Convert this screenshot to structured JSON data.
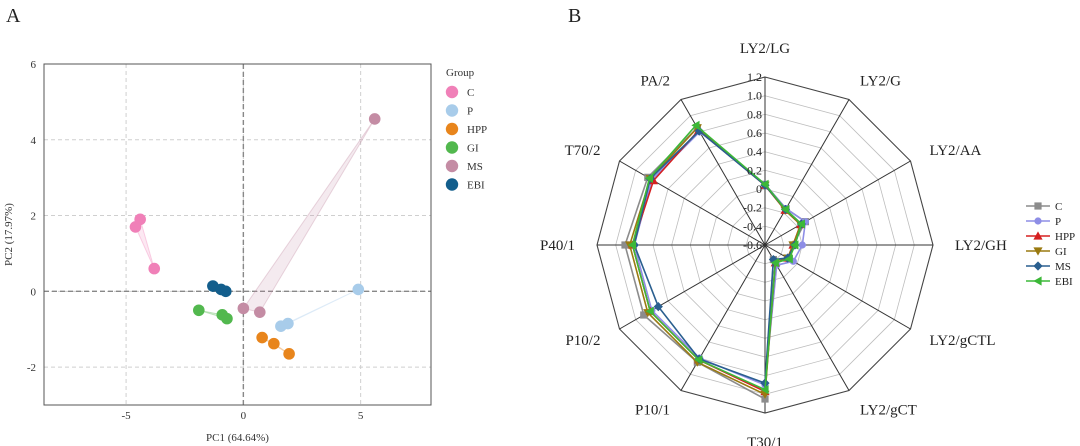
{
  "panel_labels": [
    "A",
    "B"
  ],
  "chart_data": [
    {
      "type": "scatter",
      "panel": "A",
      "xlabel": "PC1 (64.64%)",
      "ylabel": "PC2 (17.97%)",
      "xlim": [
        -8.5,
        8
      ],
      "ylim": [
        -3,
        6
      ],
      "xticks": [
        -5,
        0,
        5
      ],
      "yticks": [
        -2,
        0,
        2,
        4,
        6
      ],
      "grid": true,
      "legend_title": "Group",
      "legend_position": "right",
      "series": [
        {
          "name": "C",
          "color": "#F080B8",
          "points": [
            [
              -4.4,
              1.9
            ],
            [
              -4.6,
              1.7
            ],
            [
              -3.8,
              0.6
            ]
          ]
        },
        {
          "name": "P",
          "color": "#A8CCEA",
          "points": [
            [
              4.9,
              0.05
            ],
            [
              1.9,
              -0.85
            ],
            [
              1.6,
              -0.92
            ]
          ]
        },
        {
          "name": "HPP",
          "color": "#E8851C",
          "points": [
            [
              0.8,
              -1.22
            ],
            [
              1.3,
              -1.38
            ],
            [
              1.95,
              -1.65
            ]
          ]
        },
        {
          "name": "GI",
          "color": "#52B84E",
          "points": [
            [
              -1.9,
              -0.5
            ],
            [
              -0.9,
              -0.62
            ],
            [
              -0.7,
              -0.72
            ]
          ]
        },
        {
          "name": "MS",
          "color": "#C48CA4",
          "points": [
            [
              5.6,
              4.55
            ],
            [
              0.7,
              -0.55
            ],
            [
              0.0,
              -0.45
            ]
          ]
        },
        {
          "name": "EBI",
          "color": "#135E8C",
          "points": [
            [
              -1.3,
              0.14
            ],
            [
              -0.95,
              0.05
            ],
            [
              -0.75,
              0.0
            ]
          ]
        }
      ]
    },
    {
      "type": "radar",
      "panel": "B",
      "axes": [
        "LY2/LG",
        "LY2/G",
        "LY2/AA",
        "LY2/GH",
        "LY2/gCTL",
        "LY2/gCT",
        "T30/1",
        "P10/1",
        "P10/2",
        "P40/1",
        "T70/2",
        "PA/2"
      ],
      "rlim": [
        -0.6,
        1.2
      ],
      "rticks": [
        "1.2",
        "1.0",
        "0.8",
        "0.6",
        "0.4",
        "0.2",
        "0",
        "-0.2",
        "-0.4",
        "-0.6"
      ],
      "rtick_values": [
        1.2,
        1.0,
        0.8,
        0.6,
        0.4,
        0.2,
        0,
        -0.2,
        -0.4,
        -0.6
      ],
      "legend_position": "right",
      "series": [
        {
          "name": "C",
          "color": "#8C8C8C",
          "marker": "square",
          "values": [
            0.05,
            -0.15,
            -0.1,
            -0.3,
            -0.3,
            -0.42,
            1.05,
            0.85,
            0.9,
            0.9,
            0.85,
            0.85
          ]
        },
        {
          "name": "P",
          "color": "#8E8EE6",
          "marker": "circle",
          "values": [
            0.05,
            -0.15,
            -0.1,
            -0.2,
            -0.25,
            -0.35,
            0.9,
            0.8,
            0.8,
            0.8,
            0.8,
            0.8
          ]
        },
        {
          "name": "HPP",
          "color": "#D52020",
          "marker": "triangle-up",
          "values": [
            0.04,
            -0.17,
            -0.16,
            -0.3,
            -0.32,
            -0.38,
            0.97,
            0.82,
            0.82,
            0.82,
            0.78,
            0.82
          ]
        },
        {
          "name": "GI",
          "color": "#9A7A10",
          "marker": "triangle-down",
          "values": [
            0.04,
            -0.17,
            -0.16,
            -0.3,
            -0.32,
            -0.38,
            1.0,
            0.85,
            0.85,
            0.85,
            0.82,
            0.85
          ]
        },
        {
          "name": "MS",
          "color": "#2A5F8F",
          "marker": "diamond",
          "values": [
            0.04,
            -0.16,
            -0.15,
            -0.28,
            -0.32,
            -0.42,
            0.88,
            0.81,
            0.72,
            0.8,
            0.82,
            0.81
          ]
        },
        {
          "name": "EBI",
          "color": "#3CB838",
          "marker": "triangle-left",
          "values": [
            0.05,
            -0.16,
            -0.15,
            -0.28,
            -0.3,
            -0.38,
            0.95,
            0.82,
            0.82,
            0.82,
            0.83,
            0.88
          ]
        }
      ]
    }
  ]
}
